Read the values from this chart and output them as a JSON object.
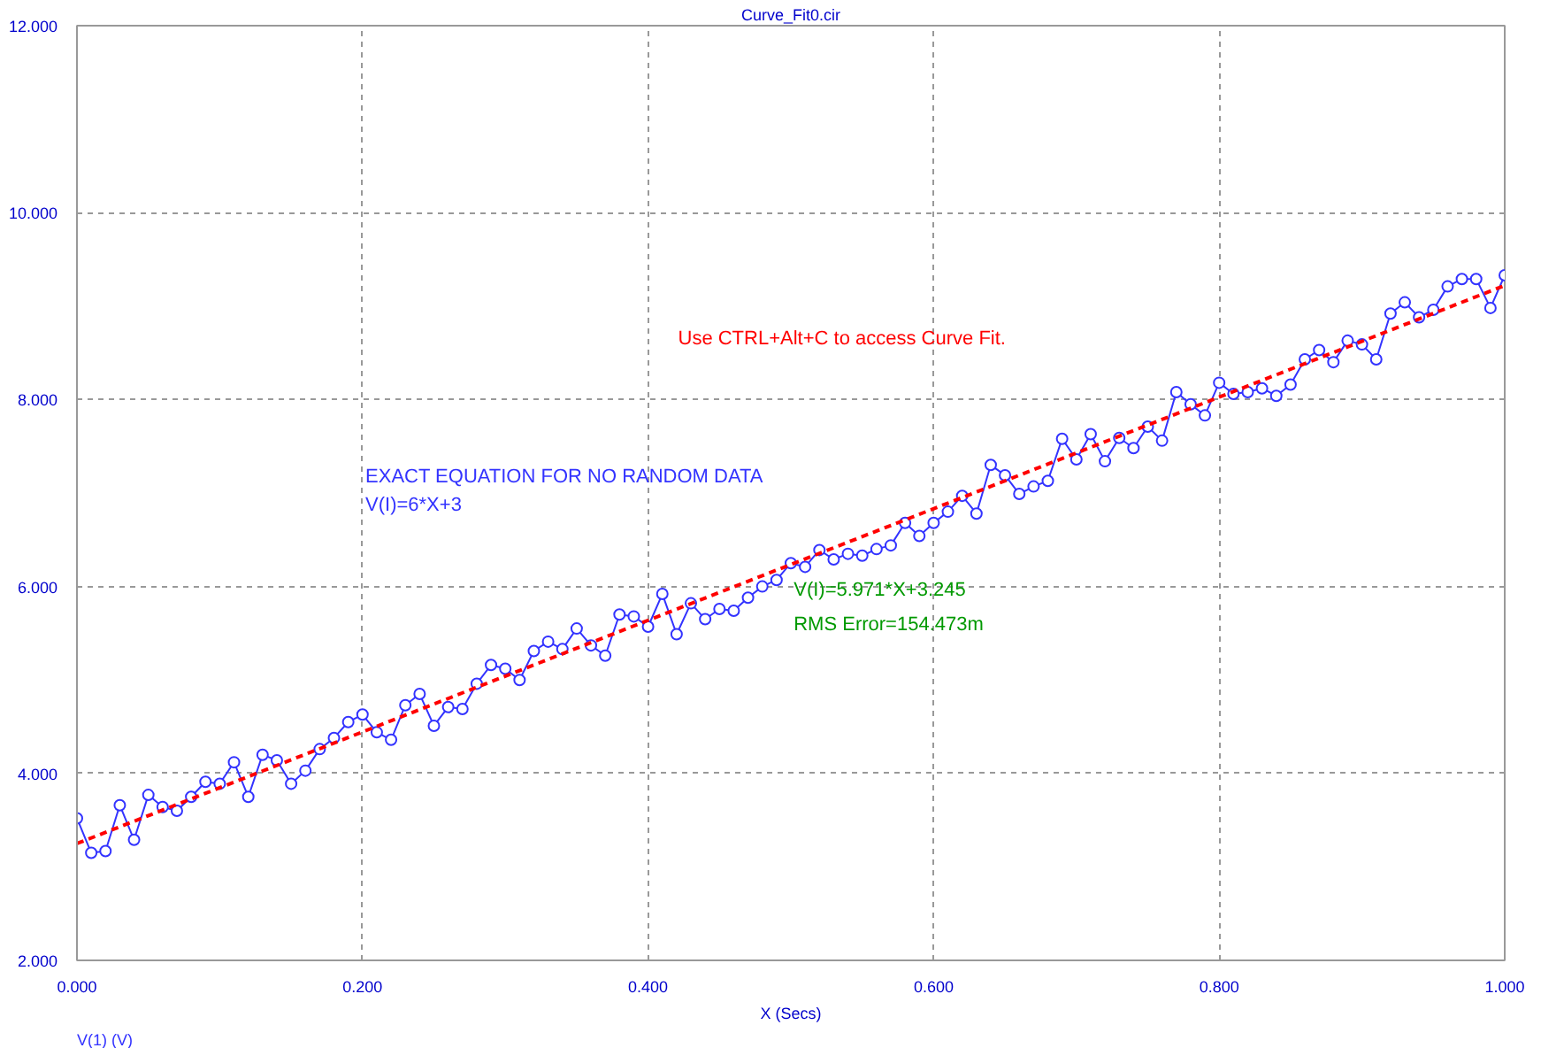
{
  "chart_data": {
    "type": "line",
    "title": "Curve_Fit0.cir",
    "xlabel": "X (Secs)",
    "x": [
      0,
      0.01,
      0.02,
      0.03,
      0.04,
      0.05,
      0.06,
      0.07,
      0.08,
      0.09,
      0.1,
      0.11,
      0.12,
      0.13,
      0.14,
      0.15,
      0.16,
      0.17,
      0.18,
      0.19,
      0.2,
      0.21,
      0.22,
      0.23,
      0.24,
      0.25,
      0.26,
      0.27,
      0.28,
      0.29,
      0.3,
      0.31,
      0.32,
      0.33,
      0.34,
      0.35,
      0.36,
      0.37,
      0.38,
      0.39,
      0.4,
      0.41,
      0.42,
      0.43,
      0.44,
      0.45,
      0.46,
      0.47,
      0.48,
      0.49,
      0.5,
      0.51,
      0.52,
      0.53,
      0.54,
      0.55,
      0.56,
      0.57,
      0.58,
      0.59,
      0.6,
      0.61,
      0.62,
      0.63,
      0.64,
      0.65,
      0.66,
      0.67,
      0.68,
      0.69,
      0.7,
      0.71,
      0.72,
      0.73,
      0.74,
      0.75,
      0.76,
      0.77,
      0.78,
      0.79,
      0.8,
      0.81,
      0.82,
      0.83,
      0.84,
      0.85,
      0.86,
      0.87,
      0.88,
      0.89,
      0.9,
      0.91,
      0.92,
      0.93,
      0.94,
      0.95,
      0.96,
      0.97,
      0.98,
      0.99,
      1.0
    ],
    "series": [
      {
        "name": "V(1) (V)",
        "color": "#3333ff",
        "marker": "circle",
        "line_style": "solid",
        "values": [
          3.52,
          3.15,
          3.17,
          3.66,
          3.29,
          3.77,
          3.64,
          3.6,
          3.75,
          3.91,
          3.89,
          4.12,
          3.75,
          4.2,
          4.14,
          3.89,
          4.03,
          4.26,
          4.38,
          4.55,
          4.63,
          4.44,
          4.36,
          4.73,
          4.85,
          4.51,
          4.71,
          4.69,
          4.96,
          5.16,
          5.12,
          5.0,
          5.31,
          5.41,
          5.33,
          5.55,
          5.37,
          5.26,
          5.7,
          5.68,
          5.57,
          5.92,
          5.49,
          5.82,
          5.65,
          5.76,
          5.74,
          5.88,
          6.0,
          6.07,
          6.25,
          6.21,
          6.39,
          6.29,
          6.35,
          6.33,
          6.4,
          6.44,
          6.68,
          6.54,
          6.68,
          6.8,
          6.97,
          6.78,
          7.3,
          7.19,
          6.99,
          7.07,
          7.13,
          7.58,
          7.36,
          7.63,
          7.34,
          7.59,
          7.48,
          7.71,
          7.56,
          8.08,
          7.95,
          7.83,
          8.18,
          8.06,
          8.08,
          8.12,
          8.04,
          8.16,
          8.43,
          8.53,
          8.4,
          8.63,
          8.59,
          8.43,
          8.92,
          9.04,
          8.88,
          8.96,
          9.21,
          9.29,
          9.29,
          8.98,
          9.33
        ]
      },
      {
        "type": "line",
        "color": "#ff0000",
        "marker": "none",
        "line_style": "dashed",
        "x": [
          0,
          1
        ],
        "values": [
          3.25,
          9.22
        ]
      }
    ],
    "xlim": [
      0,
      1
    ],
    "ylim": [
      2,
      12
    ],
    "xticks": [
      {
        "value": 0,
        "label": "0.000"
      },
      {
        "value": 0.2,
        "label": "0.200"
      },
      {
        "value": 0.4,
        "label": "0.400"
      },
      {
        "value": 0.6,
        "label": "0.600"
      },
      {
        "value": 0.8,
        "label": "0.800"
      },
      {
        "value": 1,
        "label": "1.000"
      }
    ],
    "yticks": [
      {
        "value": 2,
        "label": "2.000"
      },
      {
        "value": 4,
        "label": "4.000"
      },
      {
        "value": 6,
        "label": "6.000"
      },
      {
        "value": 8,
        "label": "8.000"
      },
      {
        "value": 10,
        "label": "10.000"
      },
      {
        "value": 12,
        "label": "12.000"
      }
    ],
    "grid": true,
    "annotations": [
      "Use CTRL+Alt+C to access Curve Fit.",
      "EXACT EQUATION FOR NO RANDOM DATA",
      "V(I)=6*X+3",
      "V(I)=5.971*X+3.245",
      "RMS Error=154.473m"
    ]
  }
}
